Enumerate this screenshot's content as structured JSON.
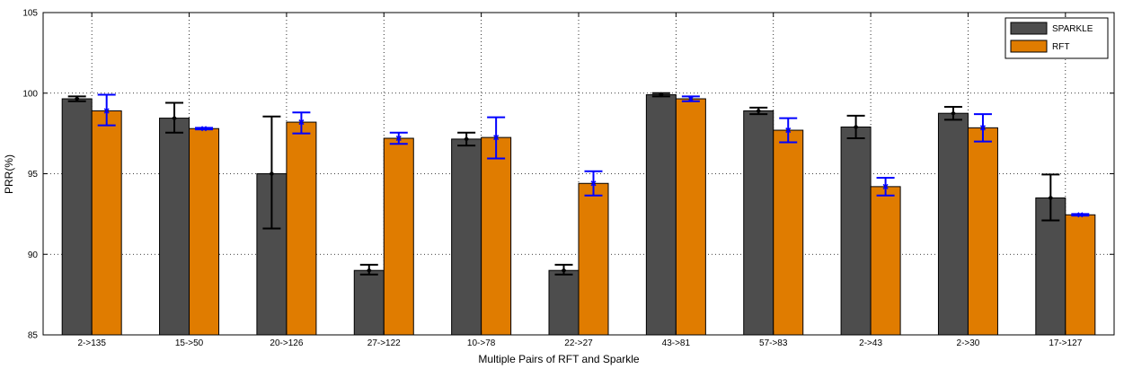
{
  "chart_data": {
    "type": "bar",
    "title": "",
    "xlabel": "Multiple Pairs of RFT and Sparkle",
    "ylabel": "PRR(%)",
    "ylim": [
      85,
      105
    ],
    "yticks": [
      85,
      90,
      95,
      100,
      105
    ],
    "grid": true,
    "legend_position": "top-right",
    "categories": [
      "2->135",
      "15->50",
      "20->126",
      "27->122",
      "10->78",
      "22->27",
      "43->81",
      "57->83",
      "2->43",
      "2->30",
      "17->127"
    ],
    "series": [
      {
        "name": "SPARKLE",
        "color": "#4d4d4d",
        "errorbar_color": "#000000",
        "values": [
          99.65,
          98.45,
          95.0,
          89.0,
          97.15,
          89.0,
          99.9,
          98.9,
          97.9,
          98.75,
          93.5
        ],
        "error_low": [
          99.5,
          97.55,
          91.6,
          88.75,
          96.75,
          88.75,
          99.8,
          98.7,
          97.2,
          98.35,
          92.1
        ],
        "error_high": [
          99.8,
          99.4,
          98.55,
          89.35,
          97.55,
          89.35,
          100.0,
          99.1,
          98.6,
          99.15,
          94.95
        ]
      },
      {
        "name": "RFT",
        "color": "#e07c00",
        "errorbar_color": "#0000ff",
        "values": [
          98.9,
          97.8,
          98.2,
          97.2,
          97.25,
          94.4,
          99.65,
          97.7,
          94.2,
          97.85,
          92.45
        ],
        "error_low": [
          98.0,
          97.75,
          97.5,
          96.85,
          95.95,
          93.65,
          99.5,
          96.95,
          93.65,
          97.0,
          92.4
        ],
        "error_high": [
          99.9,
          97.85,
          98.8,
          97.55,
          98.5,
          95.15,
          99.8,
          98.45,
          94.75,
          98.7,
          92.5
        ]
      }
    ]
  }
}
